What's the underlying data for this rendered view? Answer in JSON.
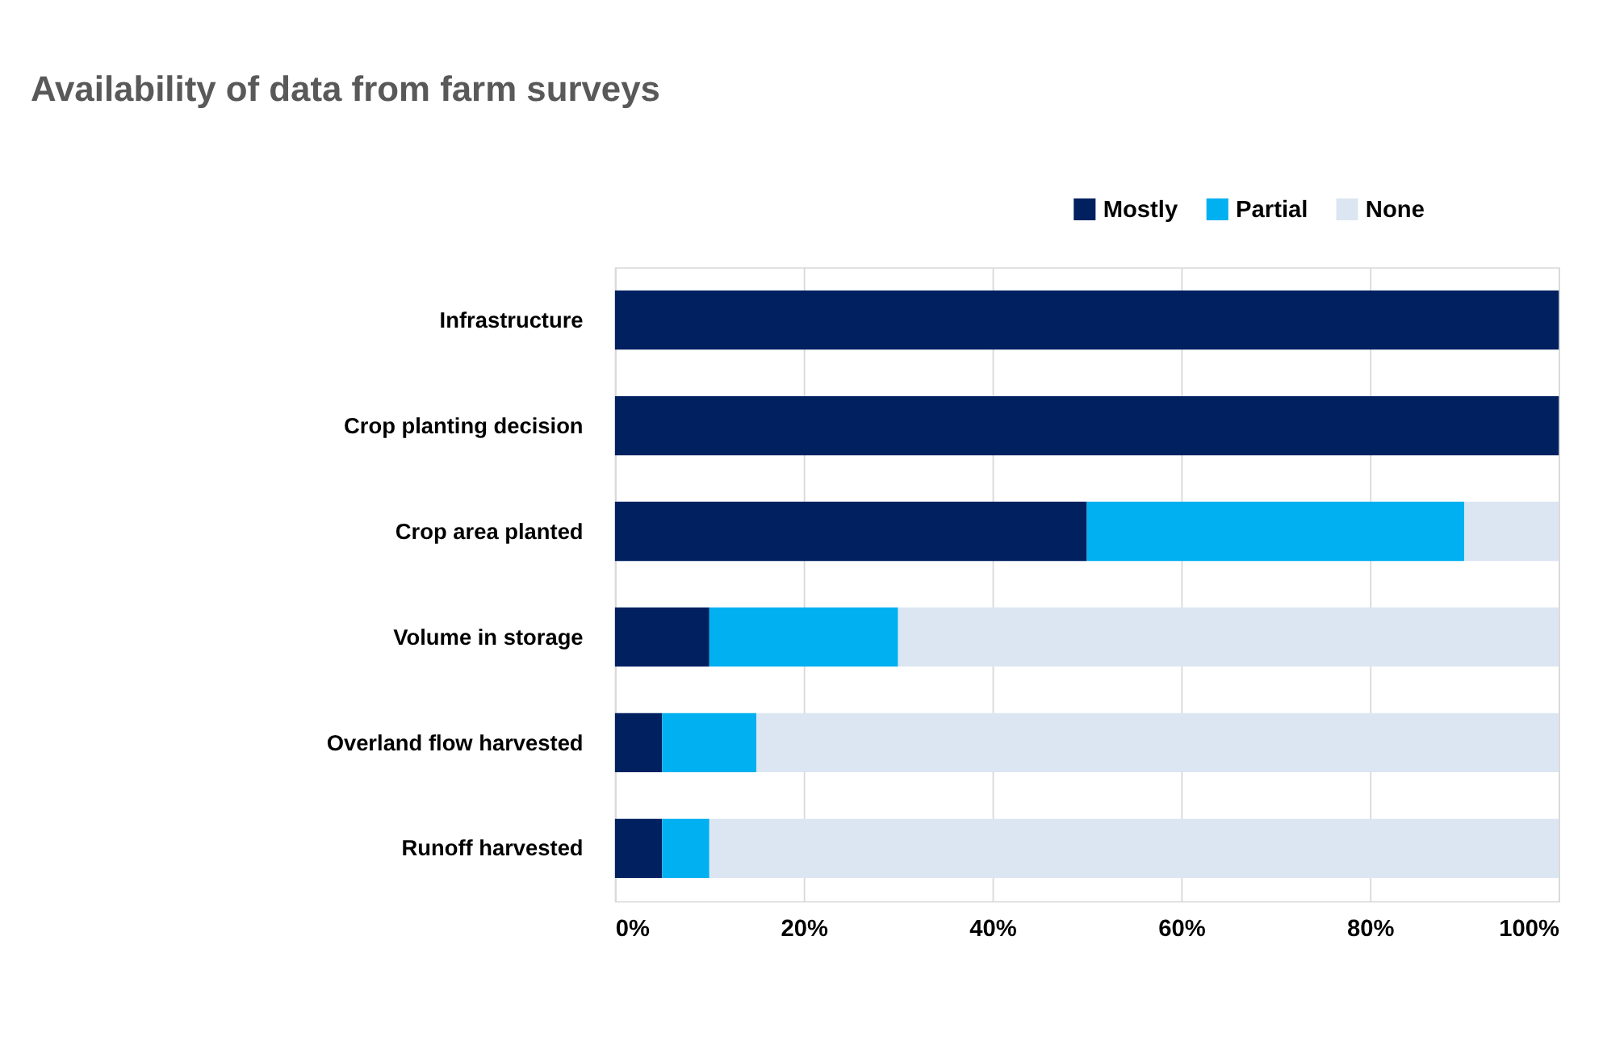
{
  "chart_data": {
    "type": "bar",
    "orientation": "horizontal",
    "stacked": true,
    "title": "Availability of data from farm surveys",
    "categories": [
      "Infrastructure",
      "Crop planting decision",
      "Crop area planted",
      "Volume in storage",
      "Overland flow harvested",
      "Runoff harvested"
    ],
    "series": [
      {
        "name": "Mostly",
        "color": "#002060",
        "values": [
          100,
          100,
          50,
          10,
          5,
          5
        ]
      },
      {
        "name": "Partial",
        "color": "#00b0f0",
        "values": [
          0,
          0,
          40,
          20,
          10,
          5
        ]
      },
      {
        "name": "None",
        "color": "#dce6f2",
        "values": [
          0,
          0,
          10,
          70,
          85,
          90
        ]
      }
    ],
    "xlim": [
      0,
      100
    ],
    "xticks": [
      {
        "value": 0,
        "label": "0%"
      },
      {
        "value": 20,
        "label": "20%"
      },
      {
        "value": 40,
        "label": "40%"
      },
      {
        "value": 60,
        "label": "60%"
      },
      {
        "value": 80,
        "label": "80%"
      },
      {
        "value": 100,
        "label": "100%"
      }
    ],
    "grid": "x",
    "legend": "top right"
  }
}
